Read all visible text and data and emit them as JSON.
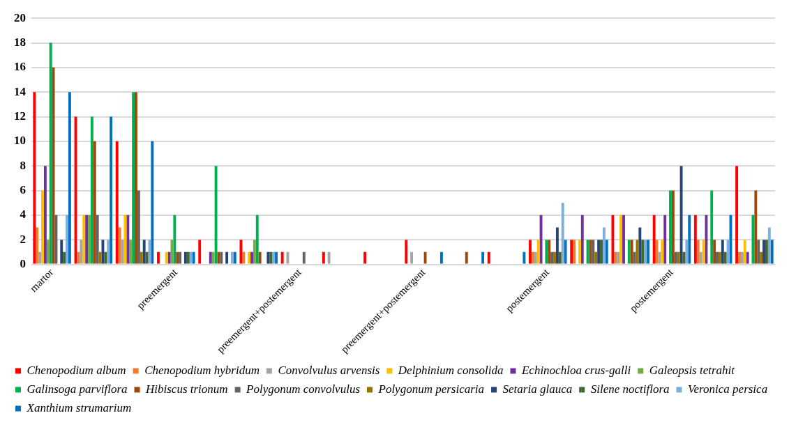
{
  "chart_data": {
    "type": "bar",
    "categories": [
      "martor",
      null,
      null,
      "preemergent",
      null,
      null,
      "preemergent+postemergent",
      null,
      null,
      "preemergent+postemergent",
      null,
      null,
      "postemergent",
      null,
      null,
      "postemergent",
      null,
      null
    ],
    "series": [
      {
        "name": "Chenopodium album",
        "color": "#ff0000",
        "values": [
          14,
          12,
          10,
          1,
          2,
          2,
          1,
          1,
          1,
          2,
          null,
          1,
          2,
          2,
          4,
          4,
          4,
          8
        ]
      },
      {
        "name": "Chenopodium hybridum",
        "color": "#ed7d31",
        "values": [
          3,
          1,
          3,
          null,
          null,
          1,
          null,
          null,
          null,
          null,
          null,
          null,
          1,
          2,
          1,
          2,
          2,
          1
        ]
      },
      {
        "name": "Convolvulus arvensis",
        "color": "#a5a5a5",
        "values": [
          1,
          2,
          2,
          null,
          null,
          null,
          1,
          1,
          null,
          1,
          null,
          null,
          1,
          null,
          1,
          1,
          1,
          1
        ]
      },
      {
        "name": "Delphinium consolida",
        "color": "#ffc000",
        "values": [
          6,
          4,
          4,
          1,
          null,
          1,
          null,
          null,
          null,
          null,
          null,
          null,
          2,
          2,
          4,
          2,
          2,
          2
        ]
      },
      {
        "name": "Echinochloa crus-galli",
        "color": "#7030a0",
        "values": [
          8,
          4,
          4,
          1,
          1,
          1,
          null,
          null,
          null,
          null,
          null,
          null,
          4,
          4,
          4,
          4,
          4,
          1
        ]
      },
      {
        "name": "Galeopsis tetrahit",
        "color": "#70ad47",
        "values": [
          2,
          4,
          2,
          2,
          1,
          2,
          null,
          null,
          null,
          null,
          null,
          null,
          null,
          null,
          null,
          null,
          null,
          null
        ]
      },
      {
        "name": "Galinsoga parviflora",
        "color": "#00b050",
        "values": [
          18,
          12,
          14,
          4,
          8,
          4,
          null,
          null,
          null,
          null,
          null,
          null,
          2,
          2,
          2,
          6,
          6,
          4
        ]
      },
      {
        "name": "Hibiscus trionum",
        "color": "#9e480e",
        "values": [
          16,
          10,
          14,
          1,
          1,
          1,
          null,
          null,
          null,
          1,
          1,
          null,
          2,
          2,
          2,
          6,
          2,
          6
        ]
      },
      {
        "name": "Polygonum convolvulus",
        "color": "#636363",
        "values": [
          4,
          4,
          6,
          1,
          1,
          null,
          1,
          null,
          null,
          null,
          null,
          null,
          1,
          2,
          1,
          1,
          1,
          2
        ]
      },
      {
        "name": "Polygonum persicaria",
        "color": "#997300",
        "values": [
          null,
          1,
          1,
          null,
          null,
          null,
          null,
          null,
          null,
          null,
          null,
          null,
          1,
          1,
          2,
          1,
          1,
          1
        ]
      },
      {
        "name": "Setaria glauca",
        "color": "#264478",
        "values": [
          2,
          2,
          2,
          1,
          1,
          1,
          null,
          null,
          null,
          null,
          null,
          null,
          3,
          2,
          3,
          8,
          2,
          2
        ]
      },
      {
        "name": "Silene noctiflora",
        "color": "#43682b",
        "values": [
          1,
          1,
          1,
          1,
          null,
          1,
          null,
          null,
          null,
          null,
          null,
          null,
          1,
          2,
          2,
          1,
          1,
          2
        ]
      },
      {
        "name": "Veronica persica",
        "color": "#7cafdd",
        "values": [
          4,
          2,
          2,
          1,
          1,
          1,
          null,
          null,
          null,
          null,
          null,
          null,
          5,
          3,
          2,
          2,
          2,
          3
        ]
      },
      {
        "name": "Xanthium strumarium",
        "color": "#0070c0",
        "values": [
          14,
          12,
          10,
          1,
          1,
          1,
          null,
          null,
          null,
          1,
          1,
          1,
          2,
          2,
          2,
          4,
          4,
          2
        ]
      }
    ],
    "ylim": [
      0,
      20
    ],
    "yticks": [
      0,
      2,
      4,
      6,
      8,
      10,
      12,
      14,
      16,
      18,
      20
    ],
    "grid": "y",
    "legend": "bottom"
  }
}
